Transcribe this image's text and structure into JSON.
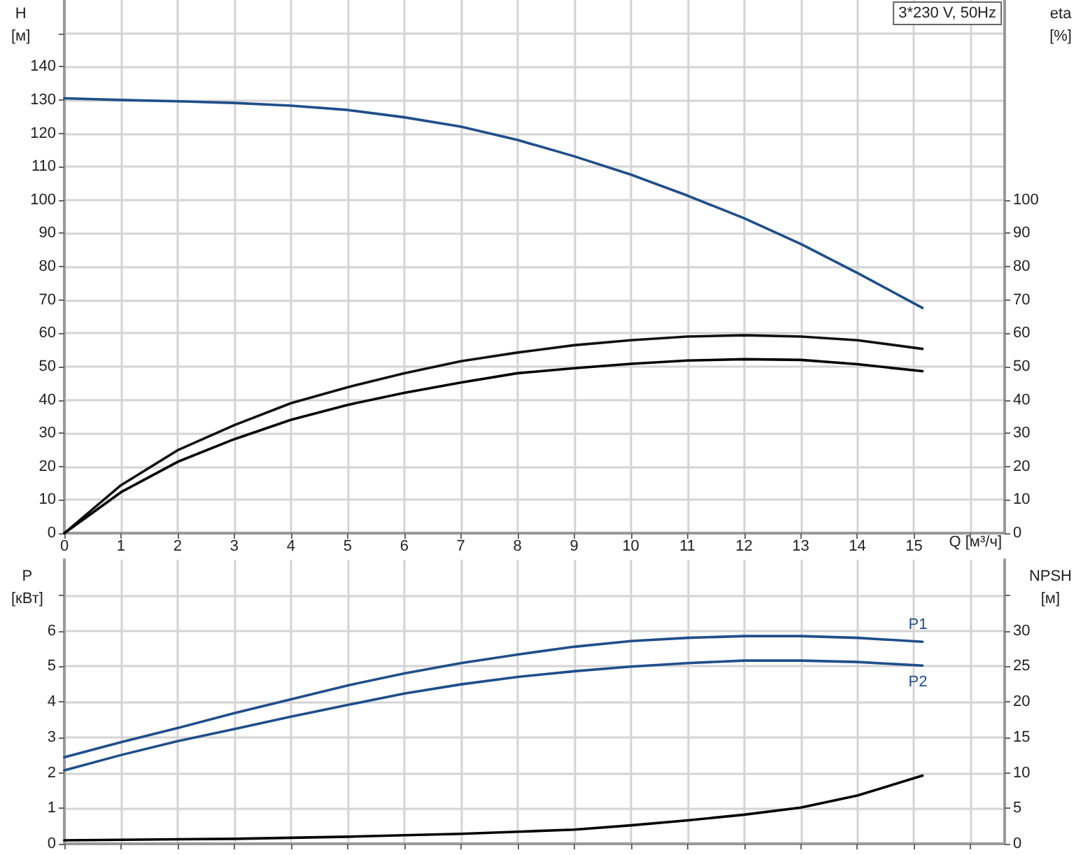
{
  "chart_data": [
    {
      "type": "line",
      "title": "3*230 V, 50Hz",
      "xlabel": "Q [м³/ч]",
      "ylabel": "H [м]",
      "y2label": "eta [%]",
      "xlim": [
        0,
        16.6
      ],
      "xticks": [
        0,
        1,
        2,
        3,
        4,
        5,
        6,
        7,
        8,
        9,
        10,
        11,
        12,
        13,
        14,
        15,
        {
          "value": 16,
          "label": null
        }
      ],
      "ylim": [
        0,
        160
      ],
      "yticks": [
        0,
        10,
        20,
        30,
        40,
        50,
        60,
        70,
        80,
        90,
        100,
        110,
        120,
        130,
        140,
        {
          "value": 150,
          "label": null
        }
      ],
      "y2lim": [
        0,
        160
      ],
      "y2ticks": [
        0,
        10,
        20,
        30,
        40,
        50,
        60,
        70,
        80,
        90,
        100
      ],
      "grid": true,
      "marker": "none",
      "line_style": "solid",
      "series": [
        {
          "color": "#1f4e8a",
          "x": [
            0,
            1,
            2,
            3,
            4,
            5,
            6,
            7,
            8,
            9,
            10,
            11,
            12,
            13,
            14,
            15.15
          ],
          "values": [
            130.5,
            130,
            129.6,
            129.1,
            128.3,
            127,
            124.8,
            122,
            118,
            113.1,
            107.6,
            101.3,
            94.5,
            86.8,
            78.1,
            67.6
          ]
        },
        {
          "color": "#111111",
          "axis": "y2",
          "x": [
            0,
            1,
            2,
            3,
            4,
            5,
            6,
            7,
            8,
            9,
            10,
            11,
            12,
            13,
            14,
            15.15
          ],
          "values": [
            0,
            14.4,
            24.9,
            32.4,
            39,
            43.8,
            48,
            51.6,
            54.2,
            56.4,
            57.9,
            59,
            59.4,
            59,
            57.9,
            55.3
          ]
        },
        {
          "color": "#000000",
          "axis": "y2",
          "x": [
            0,
            1,
            2,
            3,
            4,
            5,
            6,
            7,
            8,
            9,
            10,
            11,
            12,
            13,
            14,
            15.15
          ],
          "values": [
            0,
            12.3,
            21.4,
            28.2,
            34,
            38.5,
            42.1,
            45.2,
            48,
            49.5,
            50.8,
            51.8,
            52.2,
            52,
            50.7,
            48.6
          ]
        }
      ]
    },
    {
      "type": "line",
      "ylabel": "P [кВт]",
      "y2label": "NPSH [м]",
      "xlim": [
        0,
        16.6
      ],
      "xticks": [
        0,
        1,
        2,
        3,
        4,
        5,
        6,
        7,
        8,
        9,
        10,
        11,
        12,
        13,
        14,
        15,
        {
          "value": 16,
          "label": null
        }
      ],
      "ylim": [
        0,
        8
      ],
      "yticks": [
        0,
        1,
        2,
        3,
        4,
        5,
        6,
        {
          "value": 7,
          "label": null
        }
      ],
      "y2lim": [
        0,
        40
      ],
      "y2ticks": [
        0,
        5,
        10,
        15,
        20,
        25,
        30,
        {
          "value": 35,
          "label": null
        }
      ],
      "tick_labels": "y",
      "grid": true,
      "marker": "none",
      "line_style": "solid",
      "series": [
        {
          "name": "P1",
          "color": "#1f4e8a",
          "x": [
            0,
            1,
            2,
            3,
            4,
            5,
            6,
            7,
            8,
            9,
            10,
            11,
            12,
            13,
            14,
            15.15
          ],
          "values": [
            2.44,
            2.86,
            3.26,
            3.68,
            4.07,
            4.46,
            4.8,
            5.09,
            5.33,
            5.55,
            5.71,
            5.8,
            5.85,
            5.85,
            5.8,
            5.69
          ]
        },
        {
          "name": "P2",
          "color": "#1f4e8a",
          "x": [
            0,
            1,
            2,
            3,
            4,
            5,
            6,
            7,
            8,
            9,
            10,
            11,
            12,
            13,
            14,
            15.15
          ],
          "values": [
            2.07,
            2.5,
            2.89,
            3.23,
            3.58,
            3.91,
            4.23,
            4.49,
            4.7,
            4.86,
            4.99,
            5.09,
            5.16,
            5.16,
            5.12,
            5.02
          ]
        },
        {
          "color": "#000000",
          "axis": "y2",
          "x": [
            0,
            3,
            4,
            5,
            6,
            7,
            8,
            9,
            10,
            11,
            12,
            13,
            14,
            15.15
          ],
          "values": [
            0.5,
            0.7,
            0.85,
            1,
            1.2,
            1.4,
            1.7,
            2,
            2.6,
            3.3,
            4.1,
            5.1,
            6.8,
            9.6
          ]
        }
      ]
    }
  ]
}
